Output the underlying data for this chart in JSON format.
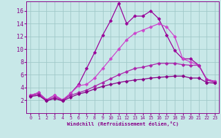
{
  "xlabel": "Windchill (Refroidissement éolien,°C)",
  "bg_color": "#c8e8e8",
  "grid_color": "#a0c8c8",
  "xlim": [
    -0.5,
    23.5
  ],
  "ylim": [
    0,
    17.5
  ],
  "yticks": [
    2,
    4,
    6,
    8,
    10,
    12,
    14,
    16
  ],
  "xticks": [
    0,
    1,
    2,
    3,
    4,
    5,
    6,
    7,
    8,
    9,
    10,
    11,
    12,
    13,
    14,
    15,
    16,
    17,
    18,
    19,
    20,
    21,
    22,
    23
  ],
  "series": [
    {
      "x": [
        0,
        1,
        2,
        3,
        4,
        5,
        6,
        7,
        8,
        9,
        10,
        11,
        12,
        13,
        14,
        15,
        16,
        17,
        18,
        19,
        20,
        21,
        22,
        23
      ],
      "y": [
        2.8,
        3.2,
        2.1,
        2.8,
        2.0,
        3.1,
        4.5,
        7.0,
        9.5,
        12.2,
        14.5,
        17.2,
        14.0,
        15.2,
        15.2,
        16.0,
        14.8,
        12.2,
        9.8,
        8.5,
        8.5,
        7.5,
        5.3,
        5.0
      ],
      "color": "#990099"
    },
    {
      "x": [
        0,
        1,
        2,
        3,
        4,
        5,
        6,
        7,
        8,
        9,
        10,
        11,
        12,
        13,
        14,
        15,
        16,
        17,
        18,
        19,
        20,
        21,
        22,
        23
      ],
      "y": [
        2.8,
        3.2,
        2.1,
        2.8,
        2.1,
        3.1,
        4.3,
        4.5,
        5.5,
        7.0,
        8.5,
        10.0,
        11.5,
        12.5,
        13.0,
        13.5,
        14.0,
        13.5,
        12.0,
        8.5,
        8.0,
        7.5,
        5.3,
        5.0
      ],
      "color": "#cc44cc"
    },
    {
      "x": [
        0,
        1,
        2,
        3,
        4,
        5,
        6,
        7,
        8,
        9,
        10,
        11,
        12,
        13,
        14,
        15,
        16,
        17,
        18,
        19,
        20,
        21,
        22,
        23
      ],
      "y": [
        2.7,
        3.0,
        2.0,
        2.5,
        2.0,
        2.8,
        3.2,
        3.6,
        4.2,
        4.8,
        5.4,
        6.0,
        6.5,
        7.0,
        7.2,
        7.5,
        7.8,
        7.8,
        7.8,
        7.6,
        7.5,
        7.5,
        5.2,
        4.8
      ],
      "color": "#aa22aa"
    },
    {
      "x": [
        0,
        1,
        2,
        3,
        4,
        5,
        6,
        7,
        8,
        9,
        10,
        11,
        12,
        13,
        14,
        15,
        16,
        17,
        18,
        19,
        20,
        21,
        22,
        23
      ],
      "y": [
        2.6,
        2.8,
        1.9,
        2.3,
        1.9,
        2.5,
        3.0,
        3.3,
        3.8,
        4.2,
        4.5,
        4.8,
        5.0,
        5.2,
        5.3,
        5.5,
        5.6,
        5.7,
        5.8,
        5.8,
        5.5,
        5.5,
        4.8,
        4.7
      ],
      "color": "#880088"
    }
  ],
  "marker": "D",
  "markersize": 2.5,
  "linewidth": 0.9,
  "label_color": "#880088",
  "tick_color": "#880088",
  "spine_color": "#880088"
}
